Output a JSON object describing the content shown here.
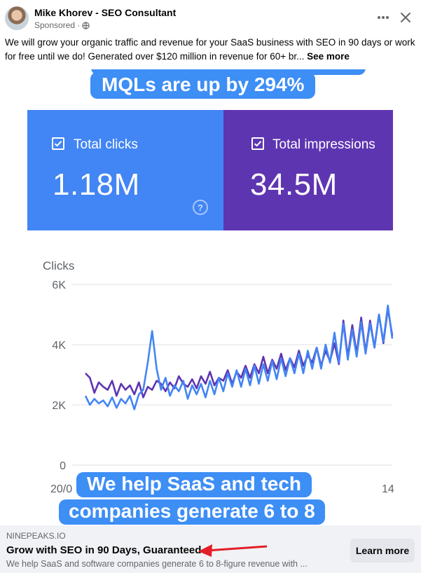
{
  "post": {
    "author": "Mike Khorev - SEO Consultant",
    "sponsored": "Sponsored ·",
    "body": "We will grow your organic traffic and revenue for your SaaS business with SEO in 90 days or work for free until we do! Generated over $120 million in revenue for 60+ br...",
    "see_more": "See more",
    "icons": {
      "more": "more-options-icon",
      "close": "close-icon",
      "privacy": "globe-icon"
    }
  },
  "media": {
    "caption_top": "MQLs are up by 294%",
    "caption_bottom_line1": "We help SaaS and tech",
    "caption_bottom_line2": "companies generate 6 to 8",
    "tiles": [
      {
        "label": "Total clicks",
        "value": "1.18M",
        "color": "#4285f4"
      },
      {
        "label": "Total impressions",
        "value": "34.5M",
        "color": "#5e35b1"
      }
    ],
    "help_icon_glyph": "?"
  },
  "chart_data": {
    "type": "line",
    "ylabel": "Clicks",
    "yticks": [
      "6K",
      "4K",
      "2K",
      "0"
    ],
    "ylim": [
      0,
      6000
    ],
    "x_tick_labels": [
      "20/0",
      "14"
    ],
    "grid": true,
    "series": [
      {
        "color": "#5e35b1",
        "values": [
          3050,
          2900,
          2400,
          2750,
          2600,
          2500,
          2800,
          2300,
          2700,
          2500,
          2650,
          2350,
          2750,
          2250,
          2600,
          2500,
          2800,
          2700,
          2450,
          2750,
          2550,
          2950,
          2700,
          2600,
          2850,
          2550,
          2950,
          2700,
          3100,
          2650,
          2900,
          2800,
          3150,
          2700,
          3100,
          2900,
          3300,
          2900,
          3350,
          3050,
          3600,
          3050,
          3500,
          3200,
          3700,
          3150,
          3550,
          3250,
          3800,
          3300,
          3650,
          3400,
          3900,
          3300,
          3800,
          3450,
          4050,
          3350,
          4800,
          3600,
          4650,
          3700,
          4900,
          3750,
          4800,
          3900,
          5000,
          4050,
          5200,
          4300
        ]
      },
      {
        "color": "#4285f4",
        "values": [
          2300,
          2000,
          2200,
          2050,
          2150,
          1950,
          2250,
          1900,
          2200,
          2050,
          2300,
          1850,
          2350,
          2500,
          3400,
          4450,
          3200,
          2500,
          2900,
          2300,
          2650,
          2450,
          2800,
          2200,
          2650,
          2350,
          2700,
          2250,
          2800,
          2350,
          2900,
          2450,
          3050,
          2600,
          3150,
          2600,
          3200,
          2650,
          3300,
          2700,
          3350,
          2800,
          3450,
          2850,
          3550,
          2950,
          3550,
          3050,
          3700,
          3050,
          3800,
          3200,
          3900,
          3200,
          4000,
          3400,
          4400,
          3400,
          4700,
          3500,
          4500,
          3600,
          4750,
          3700,
          4700,
          3900,
          5000,
          4100,
          5300,
          4200
        ]
      }
    ]
  },
  "footer": {
    "domain": "NINEPEAKS.IO",
    "headline": "Grow with SEO in 90 Days, Guaranteed",
    "description": "We help SaaS and software companies generate 6 to 8-figure revenue with ...",
    "cta": "Learn more",
    "annotation_color": "#e41e26"
  }
}
